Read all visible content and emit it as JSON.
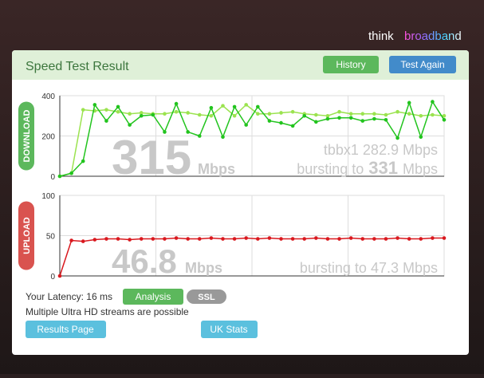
{
  "logo": {
    "first": "think",
    "second": "broadband"
  },
  "panel": {
    "title": "Speed Test Result",
    "history_button": "History",
    "retest_button": "Test Again"
  },
  "chart_data": [
    {
      "type": "line",
      "label": "DOWNLOAD",
      "ylim": [
        0,
        400
      ],
      "yticks": [
        0,
        200,
        400
      ],
      "grid": true,
      "series": [
        {
          "color": "#9be34f",
          "values": [
            0,
            15,
            330,
            325,
            330,
            320,
            310,
            315,
            310,
            310,
            320,
            315,
            305,
            300,
            350,
            300,
            355,
            310,
            310,
            315,
            320,
            310,
            305,
            300,
            320,
            310,
            310,
            310,
            305,
            320,
            310,
            300,
            305,
            300
          ]
        },
        {
          "color": "#22c41e",
          "values": [
            0,
            15,
            75,
            355,
            275,
            345,
            255,
            300,
            305,
            220,
            360,
            220,
            200,
            340,
            195,
            345,
            255,
            345,
            275,
            265,
            250,
            300,
            270,
            285,
            290,
            290,
            275,
            285,
            280,
            190,
            365,
            195,
            370,
            280
          ]
        }
      ],
      "speed": 315,
      "speed_unit": "Mbps",
      "server": "tbbx1 282.9 Mbps",
      "burst_text": "bursting to",
      "burst": 331,
      "burst_unit": "Mbps"
    },
    {
      "type": "line",
      "label": "UPLOAD",
      "ylim": [
        0,
        100
      ],
      "yticks": [
        0,
        50,
        100
      ],
      "grid": true,
      "series": [
        {
          "color": "#d9181e",
          "values": [
            0,
            44,
            43,
            45,
            46,
            46,
            45,
            46,
            46,
            46,
            47,
            46,
            46,
            47,
            46,
            46,
            47,
            46,
            47,
            46,
            46,
            46,
            47,
            46,
            46,
            47,
            46,
            46,
            46,
            47,
            46,
            46,
            47,
            47
          ]
        }
      ],
      "speed": 46.8,
      "speed_unit": "Mbps",
      "burst_text": "bursting to 47.3 Mbps"
    }
  ],
  "footer": {
    "latency": "Your Latency: 16 ms",
    "analysis_button": "Analysis",
    "ssl_badge": "SSL",
    "note": "Multiple Ultra HD streams are possible",
    "results_button": "Results Page",
    "stats_button": "UK Stats"
  }
}
